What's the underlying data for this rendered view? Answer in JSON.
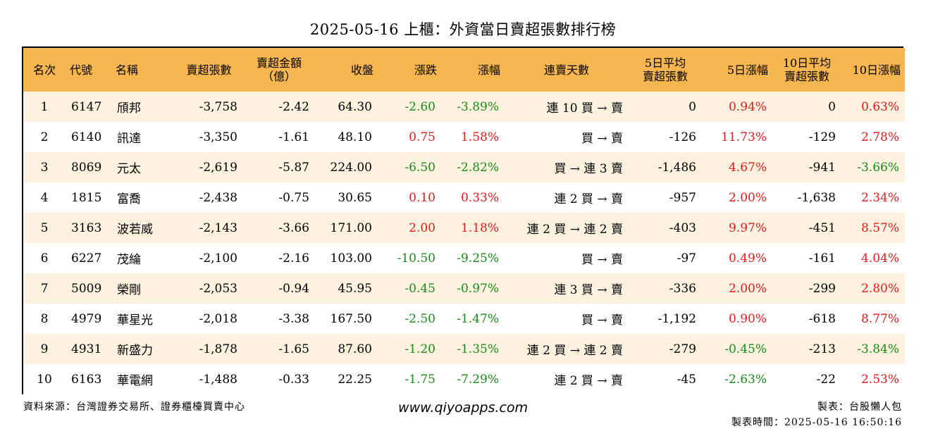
{
  "title": "2025-05-16 上櫃：外資當日賣超張數排行榜",
  "columns": [
    "名次",
    "代號",
    "名稱",
    "賣超張數",
    "賣超金額\n（億）",
    "收盤",
    "漲跌",
    "漲幅",
    "連賣天數",
    "5日平均\n賣超張數",
    "5日漲幅",
    "10日平均\n賣超張數",
    "10日漲幅"
  ],
  "rows": [
    [
      "1",
      "6147",
      "頎邦",
      "-3,758",
      "-2.42",
      "64.30",
      "-2.60",
      "-3.89%",
      "連 10 買 → 賣",
      "0",
      "0.94%",
      "0",
      "0.63%"
    ],
    [
      "2",
      "6140",
      "訊達",
      "-3,350",
      "-1.61",
      "48.10",
      "0.75",
      "1.58%",
      "買 → 賣",
      "-126",
      "11.73%",
      "-129",
      "2.78%"
    ],
    [
      "3",
      "8069",
      "元太",
      "-2,619",
      "-5.87",
      "224.00",
      "-6.50",
      "-2.82%",
      "買 → 連 3 賣",
      "-1,486",
      "4.67%",
      "-941",
      "-3.66%"
    ],
    [
      "4",
      "1815",
      "富喬",
      "-2,438",
      "-0.75",
      "30.65",
      "0.10",
      "0.33%",
      "連 2 買 → 賣",
      "-957",
      "2.00%",
      "-1,638",
      "2.34%"
    ],
    [
      "5",
      "3163",
      "波若威",
      "-2,143",
      "-3.66",
      "171.00",
      "2.00",
      "1.18%",
      "連 2 買 → 連 2 賣",
      "-403",
      "9.97%",
      "-451",
      "8.57%"
    ],
    [
      "6",
      "6227",
      "茂綸",
      "-2,100",
      "-2.16",
      "103.00",
      "-10.50",
      "-9.25%",
      "買 → 賣",
      "-97",
      "0.49%",
      "-161",
      "4.04%"
    ],
    [
      "7",
      "5009",
      "榮剛",
      "-2,053",
      "-0.94",
      "45.95",
      "-0.45",
      "-0.97%",
      "連 3 買 → 賣",
      "-336",
      "2.00%",
      "-299",
      "2.80%"
    ],
    [
      "8",
      "4979",
      "華星光",
      "-2,018",
      "-3.38",
      "167.50",
      "-2.50",
      "-1.47%",
      "買 → 賣",
      "-1,192",
      "0.90%",
      "-618",
      "8.77%"
    ],
    [
      "9",
      "4931",
      "新盛力",
      "-1,878",
      "-1.65",
      "87.60",
      "-1.20",
      "-1.35%",
      "連 2 買 → 連 2 賣",
      "-279",
      "-0.45%",
      "-213",
      "-3.84%"
    ],
    [
      "10",
      "6163",
      "華電網",
      "-1,488",
      "-0.33",
      "22.25",
      "-1.75",
      "-7.29%",
      "連 2 買 → 賣",
      "-45",
      "-2.63%",
      "-22",
      "2.53%"
    ]
  ],
  "footer": {
    "source": "資料來源：台灣證券交易所、證券櫃檯買賣中心",
    "website": "www.qiyoapps.com",
    "maker": "製表：台股懶人包",
    "made_time": "製表時間：2025-05-16 16:50:16"
  },
  "colors": {
    "header_bg": "#f7b64f",
    "odd_row_bg": "#fcf2df",
    "up": "#e11a1a",
    "down": "#1a8a1a"
  }
}
